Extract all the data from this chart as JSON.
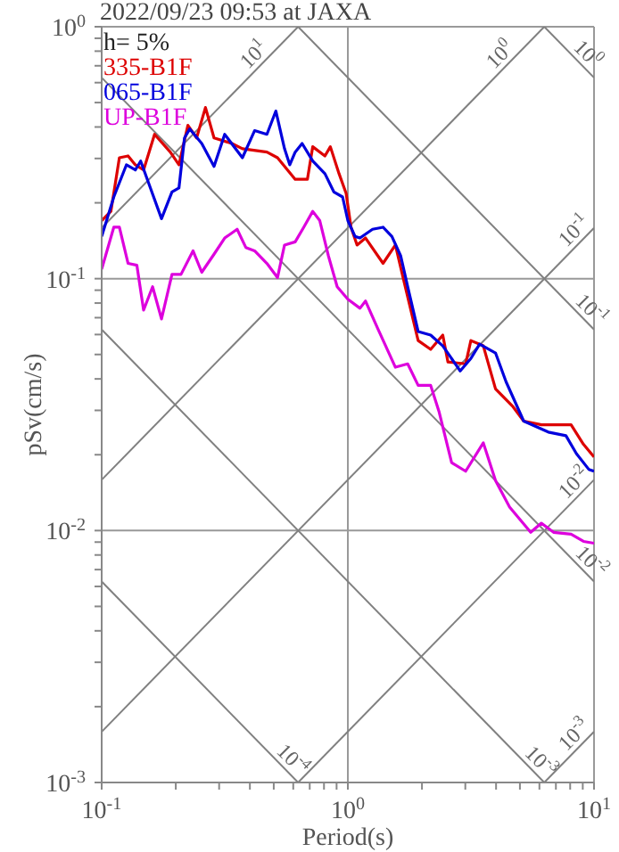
{
  "chart_data": {
    "type": "line",
    "title": "2022/09/23 09:53 at JAXA",
    "xlabel": "Period(s)",
    "ylabel": "pSv(cm/s)",
    "log": "xy",
    "grid": true,
    "legend": "top left",
    "xlim": [
      0.1,
      10
    ],
    "ylim": [
      0.001,
      1
    ],
    "xticks": [
      {
        "value": 0.1,
        "label": "10$^{-1}$"
      },
      {
        "value": 0.2,
        "label": null
      },
      {
        "value": 0.3,
        "label": null
      },
      {
        "value": 0.4,
        "label": null
      },
      {
        "value": 0.5,
        "label": null
      },
      {
        "value": 0.6,
        "label": null
      },
      {
        "value": 0.7,
        "label": null
      },
      {
        "value": 0.8,
        "label": null
      },
      {
        "value": 0.9,
        "label": null
      },
      {
        "value": 1,
        "label": "10$^{0}$"
      },
      {
        "value": 2,
        "label": null
      },
      {
        "value": 3,
        "label": null
      },
      {
        "value": 4,
        "label": null
      },
      {
        "value": 5,
        "label": null
      },
      {
        "value": 6,
        "label": null
      },
      {
        "value": 7,
        "label": null
      },
      {
        "value": 8,
        "label": null
      },
      {
        "value": 9,
        "label": null
      },
      {
        "value": 10,
        "label": "10$^{1}$"
      }
    ],
    "yticks": [
      {
        "value": 0.001,
        "label": "10$^{-3}$"
      },
      {
        "value": 0.002,
        "label": null
      },
      {
        "value": 0.003,
        "label": null
      },
      {
        "value": 0.004,
        "label": null
      },
      {
        "value": 0.005,
        "label": null
      },
      {
        "value": 0.006,
        "label": null
      },
      {
        "value": 0.007,
        "label": null
      },
      {
        "value": 0.008,
        "label": null
      },
      {
        "value": 0.009,
        "label": null
      },
      {
        "value": 0.01,
        "label": "10$^{-2}$"
      },
      {
        "value": 0.02,
        "label": null
      },
      {
        "value": 0.03,
        "label": null
      },
      {
        "value": 0.04,
        "label": null
      },
      {
        "value": 0.05,
        "label": null
      },
      {
        "value": 0.06,
        "label": null
      },
      {
        "value": 0.07,
        "label": null
      },
      {
        "value": 0.08,
        "label": null
      },
      {
        "value": 0.09,
        "label": null
      },
      {
        "value": 0.1,
        "label": "10$^{-1}$"
      },
      {
        "value": 0.2,
        "label": null
      },
      {
        "value": 0.3,
        "label": null
      },
      {
        "value": 0.4,
        "label": null
      },
      {
        "value": 0.5,
        "label": null
      },
      {
        "value": 0.6,
        "label": null
      },
      {
        "value": 0.7,
        "label": null
      },
      {
        "value": 0.8,
        "label": null
      },
      {
        "value": 0.9,
        "label": null
      },
      {
        "value": 1,
        "label": "10$^{0}$"
      }
    ],
    "annotations": [
      "h= 5%",
      {
        "text": "10$^{1}$",
        "x": 0.45,
        "y": 0.716
      },
      {
        "text": "10$^{0}$",
        "x": 4.5,
        "y": 0.716
      },
      {
        "text": "10$^{0}$",
        "x": 8.7,
        "y": 0.722
      },
      {
        "text": "10$^{-1}$",
        "x": 9,
        "y": 0.143
      },
      {
        "text": "10$^{-1}$",
        "x": 9,
        "y": 0.0698
      },
      {
        "text": "10$^{-2}$",
        "x": 9,
        "y": 0.0143
      },
      {
        "text": "10$^{-2}$",
        "x": 9,
        "y": 0.00698
      },
      {
        "text": "10$^{-3}$",
        "x": 9,
        "y": 0.00143
      },
      {
        "text": "10$^{-3}$",
        "x": 5.6,
        "y": 0.00112
      },
      {
        "text": "10$^{-4}$",
        "x": 0.55,
        "y": 0.00114
      }
    ],
    "series": [
      {
        "type": "line",
        "color": "#808080",
        "x": [
          0.1,
          0.628
        ],
        "values": [
          0.159,
          1
        ]
      },
      {
        "type": "line",
        "color": "#808080",
        "x": [
          0.1,
          6.28
        ],
        "values": [
          0.0159,
          1
        ]
      },
      {
        "type": "line",
        "color": "#808080",
        "x": [
          0.1,
          10
        ],
        "values": [
          0.00159,
          0.159
        ]
      },
      {
        "type": "line",
        "color": "#808080",
        "x": [
          0.628,
          10
        ],
        "values": [
          0.001,
          0.0159
        ]
      },
      {
        "type": "line",
        "color": "#808080",
        "x": [
          6.28,
          10
        ],
        "values": [
          0.001,
          0.00159
        ]
      },
      {
        "type": "line",
        "color": "#808080",
        "x": [
          6.28,
          10
        ],
        "values": [
          1,
          0.628
        ]
      },
      {
        "type": "line",
        "color": "#808080",
        "x": [
          0.628,
          10
        ],
        "values": [
          1,
          0.0628
        ]
      },
      {
        "type": "line",
        "color": "#808080",
        "x": [
          0.1,
          10
        ],
        "values": [
          0.628,
          0.00628
        ]
      },
      {
        "type": "line",
        "color": "#808080",
        "x": [
          0.1,
          6.28
        ],
        "values": [
          0.0628,
          0.001
        ]
      },
      {
        "type": "line",
        "color": "#808080",
        "x": [
          0.1,
          0.628
        ],
        "values": [
          0.00628,
          0.001
        ]
      },
      {
        "name": "335-B1F",
        "color": "#dd0000",
        "x": [
          0.1,
          0.109,
          0.118,
          0.128,
          0.137,
          0.148,
          0.164,
          0.19,
          0.206,
          0.224,
          0.243,
          0.264,
          0.286,
          0.338,
          0.373,
          0.469,
          0.518,
          0.611,
          0.685,
          0.72,
          0.807,
          0.849,
          0.921,
          0.984,
          1.03,
          1.09,
          1.18,
          1.39,
          1.56,
          1.69,
          1.93,
          2.17,
          2.43,
          2.55,
          3.01,
          3.16,
          3.55,
          3.98,
          4.69,
          5.18,
          6.11,
          7.2,
          8.07,
          9.06,
          10
        ],
        "values": [
          0.17,
          0.185,
          0.302,
          0.307,
          0.283,
          0.27,
          0.374,
          0.318,
          0.283,
          0.406,
          0.362,
          0.478,
          0.362,
          0.344,
          0.328,
          0.318,
          0.302,
          0.248,
          0.248,
          0.334,
          0.307,
          0.334,
          0.261,
          0.218,
          0.16,
          0.136,
          0.145,
          0.115,
          0.136,
          0.0976,
          0.0568,
          0.0524,
          0.0597,
          0.0467,
          0.0459,
          0.0568,
          0.0541,
          0.0365,
          0.031,
          0.0272,
          0.0263,
          0.0263,
          0.0263,
          0.022,
          0.0196
        ]
      },
      {
        "name": "065-B1F",
        "color": "#0000dd",
        "x": [
          0.1,
          0.112,
          0.126,
          0.137,
          0.144,
          0.156,
          0.175,
          0.193,
          0.206,
          0.217,
          0.228,
          0.255,
          0.286,
          0.316,
          0.373,
          0.418,
          0.469,
          0.51,
          0.553,
          0.581,
          0.611,
          0.652,
          0.72,
          0.807,
          0.877,
          0.952,
          1.0,
          1.07,
          1.12,
          1.26,
          1.39,
          1.51,
          1.64,
          1.75,
          1.93,
          2.17,
          2.43,
          2.86,
          3.16,
          3.43,
          3.98,
          4.39,
          5.18,
          6.52,
          7.69,
          8.48,
          9.52,
          10
        ],
        "values": [
          0.147,
          0.211,
          0.283,
          0.27,
          0.293,
          0.236,
          0.173,
          0.221,
          0.229,
          0.362,
          0.393,
          0.344,
          0.279,
          0.374,
          0.302,
          0.387,
          0.374,
          0.463,
          0.328,
          0.283,
          0.318,
          0.344,
          0.293,
          0.261,
          0.221,
          0.211,
          0.17,
          0.147,
          0.145,
          0.157,
          0.16,
          0.147,
          0.123,
          0.0929,
          0.0617,
          0.0597,
          0.0541,
          0.043,
          0.0482,
          0.055,
          0.0507,
          0.039,
          0.0272,
          0.0246,
          0.0238,
          0.0202,
          0.0175,
          0.0172
        ]
      },
      {
        "name": "UP-B1F",
        "color": "#dd00dd",
        "x": [
          0.1,
          0.112,
          0.118,
          0.128,
          0.139,
          0.148,
          0.161,
          0.175,
          0.193,
          0.21,
          0.235,
          0.255,
          0.286,
          0.316,
          0.355,
          0.385,
          0.418,
          0.469,
          0.518,
          0.553,
          0.611,
          0.662,
          0.72,
          0.769,
          0.834,
          0.905,
          1.0,
          1.12,
          1.18,
          1.32,
          1.56,
          1.75,
          1.93,
          2.17,
          2.35,
          2.64,
          3.01,
          3.55,
          3.98,
          4.54,
          5.53,
          6.11,
          6.85,
          8.07,
          9.06,
          10
        ],
        "values": [
          0.109,
          0.16,
          0.16,
          0.115,
          0.113,
          0.075,
          0.0929,
          0.0692,
          0.104,
          0.104,
          0.129,
          0.106,
          0.125,
          0.145,
          0.157,
          0.133,
          0.129,
          0.115,
          0.101,
          0.136,
          0.14,
          0.16,
          0.185,
          0.17,
          0.123,
          0.0929,
          0.0828,
          0.0763,
          0.0815,
          0.0637,
          0.0445,
          0.0459,
          0.0377,
          0.0377,
          0.0295,
          0.0186,
          0.0172,
          0.0223,
          0.0158,
          0.0124,
          0.00984,
          0.0107,
          0.00984,
          0.00968,
          0.00906,
          0.00891
        ]
      }
    ]
  }
}
